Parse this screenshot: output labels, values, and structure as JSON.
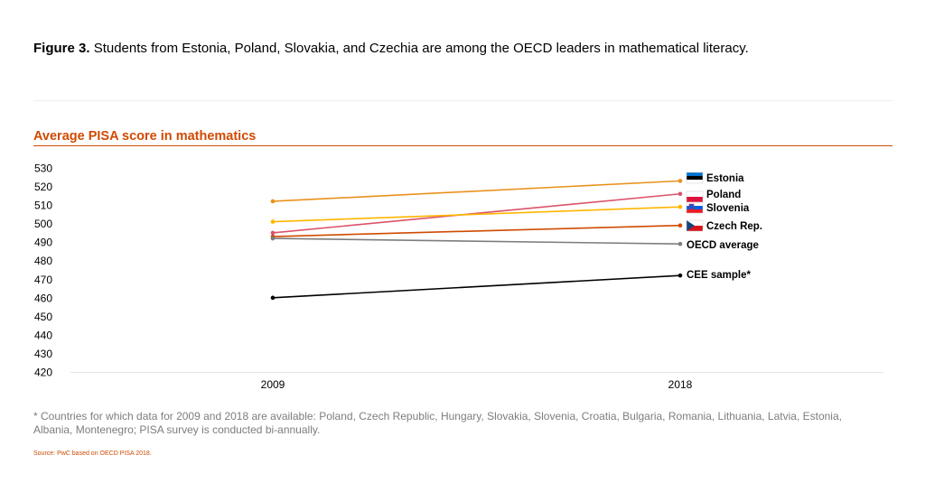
{
  "figure": {
    "label": "Figure 3.",
    "caption": "Students from Estonia, Poland, Slovakia, and Czechia are among the OECD leaders in mathematical literacy."
  },
  "footnote": "* Countries for which data for 2009 and 2018 are available: Poland, Czech Republic, Hungary, Slovakia, Slovenia, Croatia, Bulgaria, Romania, Lithuania, Latvia, Estonia, Albania, Montenegro; PISA survey is conducted bi-annually.",
  "source": "Source: PwC based on OECD PISA 2018.",
  "chart_data": {
    "type": "line",
    "title": "Average PISA score in mathematics",
    "xlabel": "",
    "ylabel": "",
    "categories": [
      "2009",
      "2018"
    ],
    "ylim": [
      420,
      530
    ],
    "yticks": [
      420,
      430,
      440,
      450,
      460,
      470,
      480,
      490,
      500,
      510,
      520,
      530
    ],
    "grid": false,
    "legend": "labels at line ends (right)",
    "series": [
      {
        "name": "Estonia",
        "values": [
          512,
          523
        ],
        "color": "#e8921c",
        "flag": "estonia-flag-icon"
      },
      {
        "name": "Poland",
        "values": [
          495,
          516
        ],
        "color": "#db536a",
        "flag": "poland-flag-icon"
      },
      {
        "name": "Slovenia",
        "values": [
          501,
          509
        ],
        "color": "#ffb600",
        "flag": "slovenia-flag-icon"
      },
      {
        "name": "Czech Rep.",
        "values": [
          493,
          499
        ],
        "color": "#d04a02",
        "flag": "czech-flag-icon"
      },
      {
        "name": "OECD average",
        "values": [
          492,
          489
        ],
        "color": "#7d7d7d"
      },
      {
        "name": "CEE sample*",
        "values": [
          460,
          472
        ],
        "color": "#000000"
      }
    ]
  }
}
